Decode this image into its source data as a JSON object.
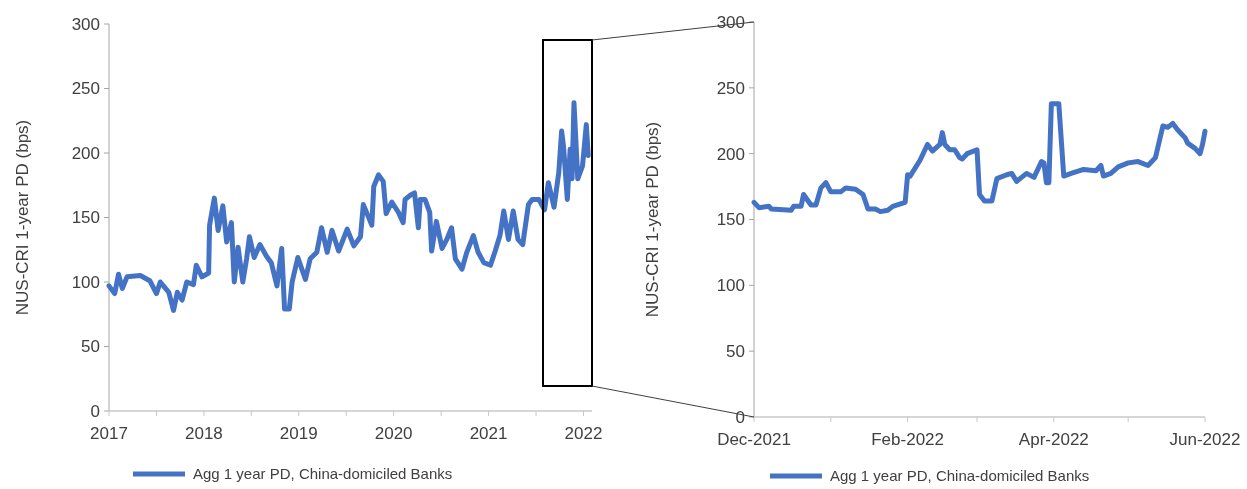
{
  "chart_data": [
    {
      "type": "line",
      "ylabel": "NUS-CRI  1-year PD (bps)",
      "legend": "bottom",
      "ylim": [
        0,
        300
      ],
      "yticks": [
        0,
        50,
        100,
        150,
        200,
        250,
        300
      ],
      "xlim": [
        2017,
        2022.09
      ],
      "xticks": [
        2017,
        {
          "value": 2017.5,
          "label": null
        },
        2018,
        {
          "value": 2018.5,
          "label": null
        },
        2019,
        {
          "value": 2019.5,
          "label": null
        },
        2020,
        {
          "value": 2020.5,
          "label": null
        },
        2021,
        {
          "value": 2021.5,
          "label": null
        },
        2022
      ],
      "series": [
        {
          "name": "Agg 1 year PD, China-domiciled Banks",
          "color": "#4472c4",
          "x": [
            2017.0,
            2017.06,
            2017.1,
            2017.14,
            2017.19,
            2017.33,
            2017.43,
            2017.5,
            2017.54,
            2017.63,
            2017.68,
            2017.72,
            2017.77,
            2017.82,
            2017.89,
            2017.92,
            2017.98,
            2018.05,
            2018.06,
            2018.11,
            2018.15,
            2018.2,
            2018.24,
            2018.29,
            2018.32,
            2018.36,
            2018.41,
            2018.45,
            2018.48,
            2018.53,
            2018.59,
            2018.66,
            2018.71,
            2018.77,
            2018.82,
            2018.85,
            2018.9,
            2018.93,
            2018.99,
            2019.07,
            2019.12,
            2019.19,
            2019.24,
            2019.3,
            2019.35,
            2019.42,
            2019.51,
            2019.58,
            2019.65,
            2019.68,
            2019.72,
            2019.77,
            2019.79,
            2019.84,
            2019.89,
            2019.92,
            2019.98,
            2020.05,
            2020.1,
            2020.12,
            2020.17,
            2020.22,
            2020.26,
            2020.28,
            2020.33,
            2020.38,
            2020.4,
            2020.45,
            2020.51,
            2020.56,
            2020.61,
            2020.65,
            2020.72,
            2020.77,
            2020.84,
            2020.89,
            2020.95,
            2021.02,
            2021.07,
            2021.12,
            2021.16,
            2021.21,
            2021.26,
            2021.31,
            2021.36,
            2021.42,
            2021.46,
            2021.53,
            2021.59,
            2021.63,
            2021.69,
            2021.74,
            2021.77,
            2021.79,
            2021.83,
            2021.86,
            2021.88,
            2021.9,
            2021.94,
            2021.99,
            2022.03,
            2022.05
          ],
          "values": [
            97,
            91,
            106,
            95,
            104,
            105,
            101,
            91,
            100,
            92,
            78,
            92,
            86,
            100,
            98,
            113,
            104,
            107,
            144,
            165,
            140,
            159,
            131,
            146,
            100,
            127,
            100,
            118,
            135,
            119,
            129,
            120,
            115,
            97,
            126,
            79,
            79,
            100,
            119,
            102,
            118,
            123,
            142,
            123,
            140,
            124,
            141,
            128,
            135,
            160,
            153,
            144,
            174,
            183,
            178,
            153,
            162,
            154,
            146,
            164,
            167,
            169,
            142,
            164,
            164,
            154,
            124,
            147,
            126,
            133,
            142,
            118,
            110,
            123,
            136,
            123,
            115,
            113,
            124,
            136,
            155,
            133,
            155,
            133,
            129,
            160,
            164,
            164,
            156,
            177,
            158,
            185,
            217,
            205,
            164,
            203,
            180,
            239,
            180,
            190,
            222,
            198
          ]
        }
      ]
    },
    {
      "type": "line",
      "ylabel": "NUS-CRI  1-year PD (bps)",
      "legend": "bottom",
      "ylim": [
        0,
        300
      ],
      "yticks": [
        0,
        50,
        100,
        150,
        200,
        250,
        300
      ],
      "xlim": [
        "2021-12-01",
        "2022-06-01"
      ],
      "xticks": [
        {
          "value": "2021-12-01",
          "label": "Dec-2021"
        },
        {
          "value": "2022-01-01",
          "label": null
        },
        {
          "value": "2022-02-01",
          "label": "Feb-2022"
        },
        {
          "value": "2022-03-01",
          "label": null
        },
        {
          "value": "2022-04-01",
          "label": "Apr-2022"
        },
        {
          "value": "2022-05-01",
          "label": null
        },
        {
          "value": "2022-06-01",
          "label": "Jun-2022"
        }
      ],
      "series": [
        {
          "name": "Agg 1 year PD, China-domiciled Banks",
          "color": "#4472c4",
          "x": [
            "2021-12-01",
            "2021-12-03",
            "2021-12-07",
            "2021-12-08",
            "2021-12-16",
            "2021-12-17",
            "2021-12-20",
            "2021-12-21",
            "2021-12-24",
            "2021-12-26",
            "2021-12-28",
            "2021-12-30",
            "2022-01-01",
            "2022-01-05",
            "2022-01-07",
            "2022-01-11",
            "2022-01-14",
            "2022-01-16",
            "2022-01-19",
            "2022-01-21",
            "2022-01-24",
            "2022-01-26",
            "2022-01-31",
            "2022-02-01",
            "2022-02-02",
            "2022-02-06",
            "2022-02-09",
            "2022-02-11",
            "2022-02-14",
            "2022-02-15",
            "2022-02-16",
            "2022-02-18",
            "2022-02-20",
            "2022-02-22",
            "2022-02-23",
            "2022-02-25",
            "2022-03-01",
            "2022-03-02",
            "2022-03-04",
            "2022-03-07",
            "2022-03-09",
            "2022-03-13",
            "2022-03-15",
            "2022-03-17",
            "2022-03-21",
            "2022-03-24",
            "2022-03-27",
            "2022-03-28",
            "2022-03-29",
            "2022-03-30",
            "2022-03-31",
            "2022-04-03",
            "2022-04-05",
            "2022-04-08",
            "2022-04-13",
            "2022-04-18",
            "2022-04-20",
            "2022-04-21",
            "2022-04-24",
            "2022-04-27",
            "2022-05-01",
            "2022-05-05",
            "2022-05-09",
            "2022-05-12",
            "2022-05-15",
            "2022-05-17",
            "2022-05-19",
            "2022-05-21",
            "2022-05-24",
            "2022-05-25",
            "2022-05-28",
            "2022-05-30",
            "2022-05-31",
            "2022-06-01"
          ],
          "values": [
            163,
            159,
            160,
            158,
            157,
            160,
            160,
            169,
            161,
            161,
            174,
            178,
            171,
            171,
            174,
            173,
            169,
            158,
            158,
            156,
            157,
            160,
            163,
            184,
            183,
            195,
            207,
            202,
            207,
            216,
            207,
            203,
            203,
            197,
            196,
            200,
            203,
            169,
            164,
            164,
            181,
            184,
            185,
            179,
            185,
            182,
            194,
            193,
            178,
            178,
            238,
            238,
            183,
            185,
            188,
            187,
            191,
            183,
            185,
            190,
            193,
            194,
            191,
            197,
            221,
            220,
            223,
            218,
            212,
            208,
            204,
            200,
            207,
            217
          ]
        }
      ]
    }
  ]
}
